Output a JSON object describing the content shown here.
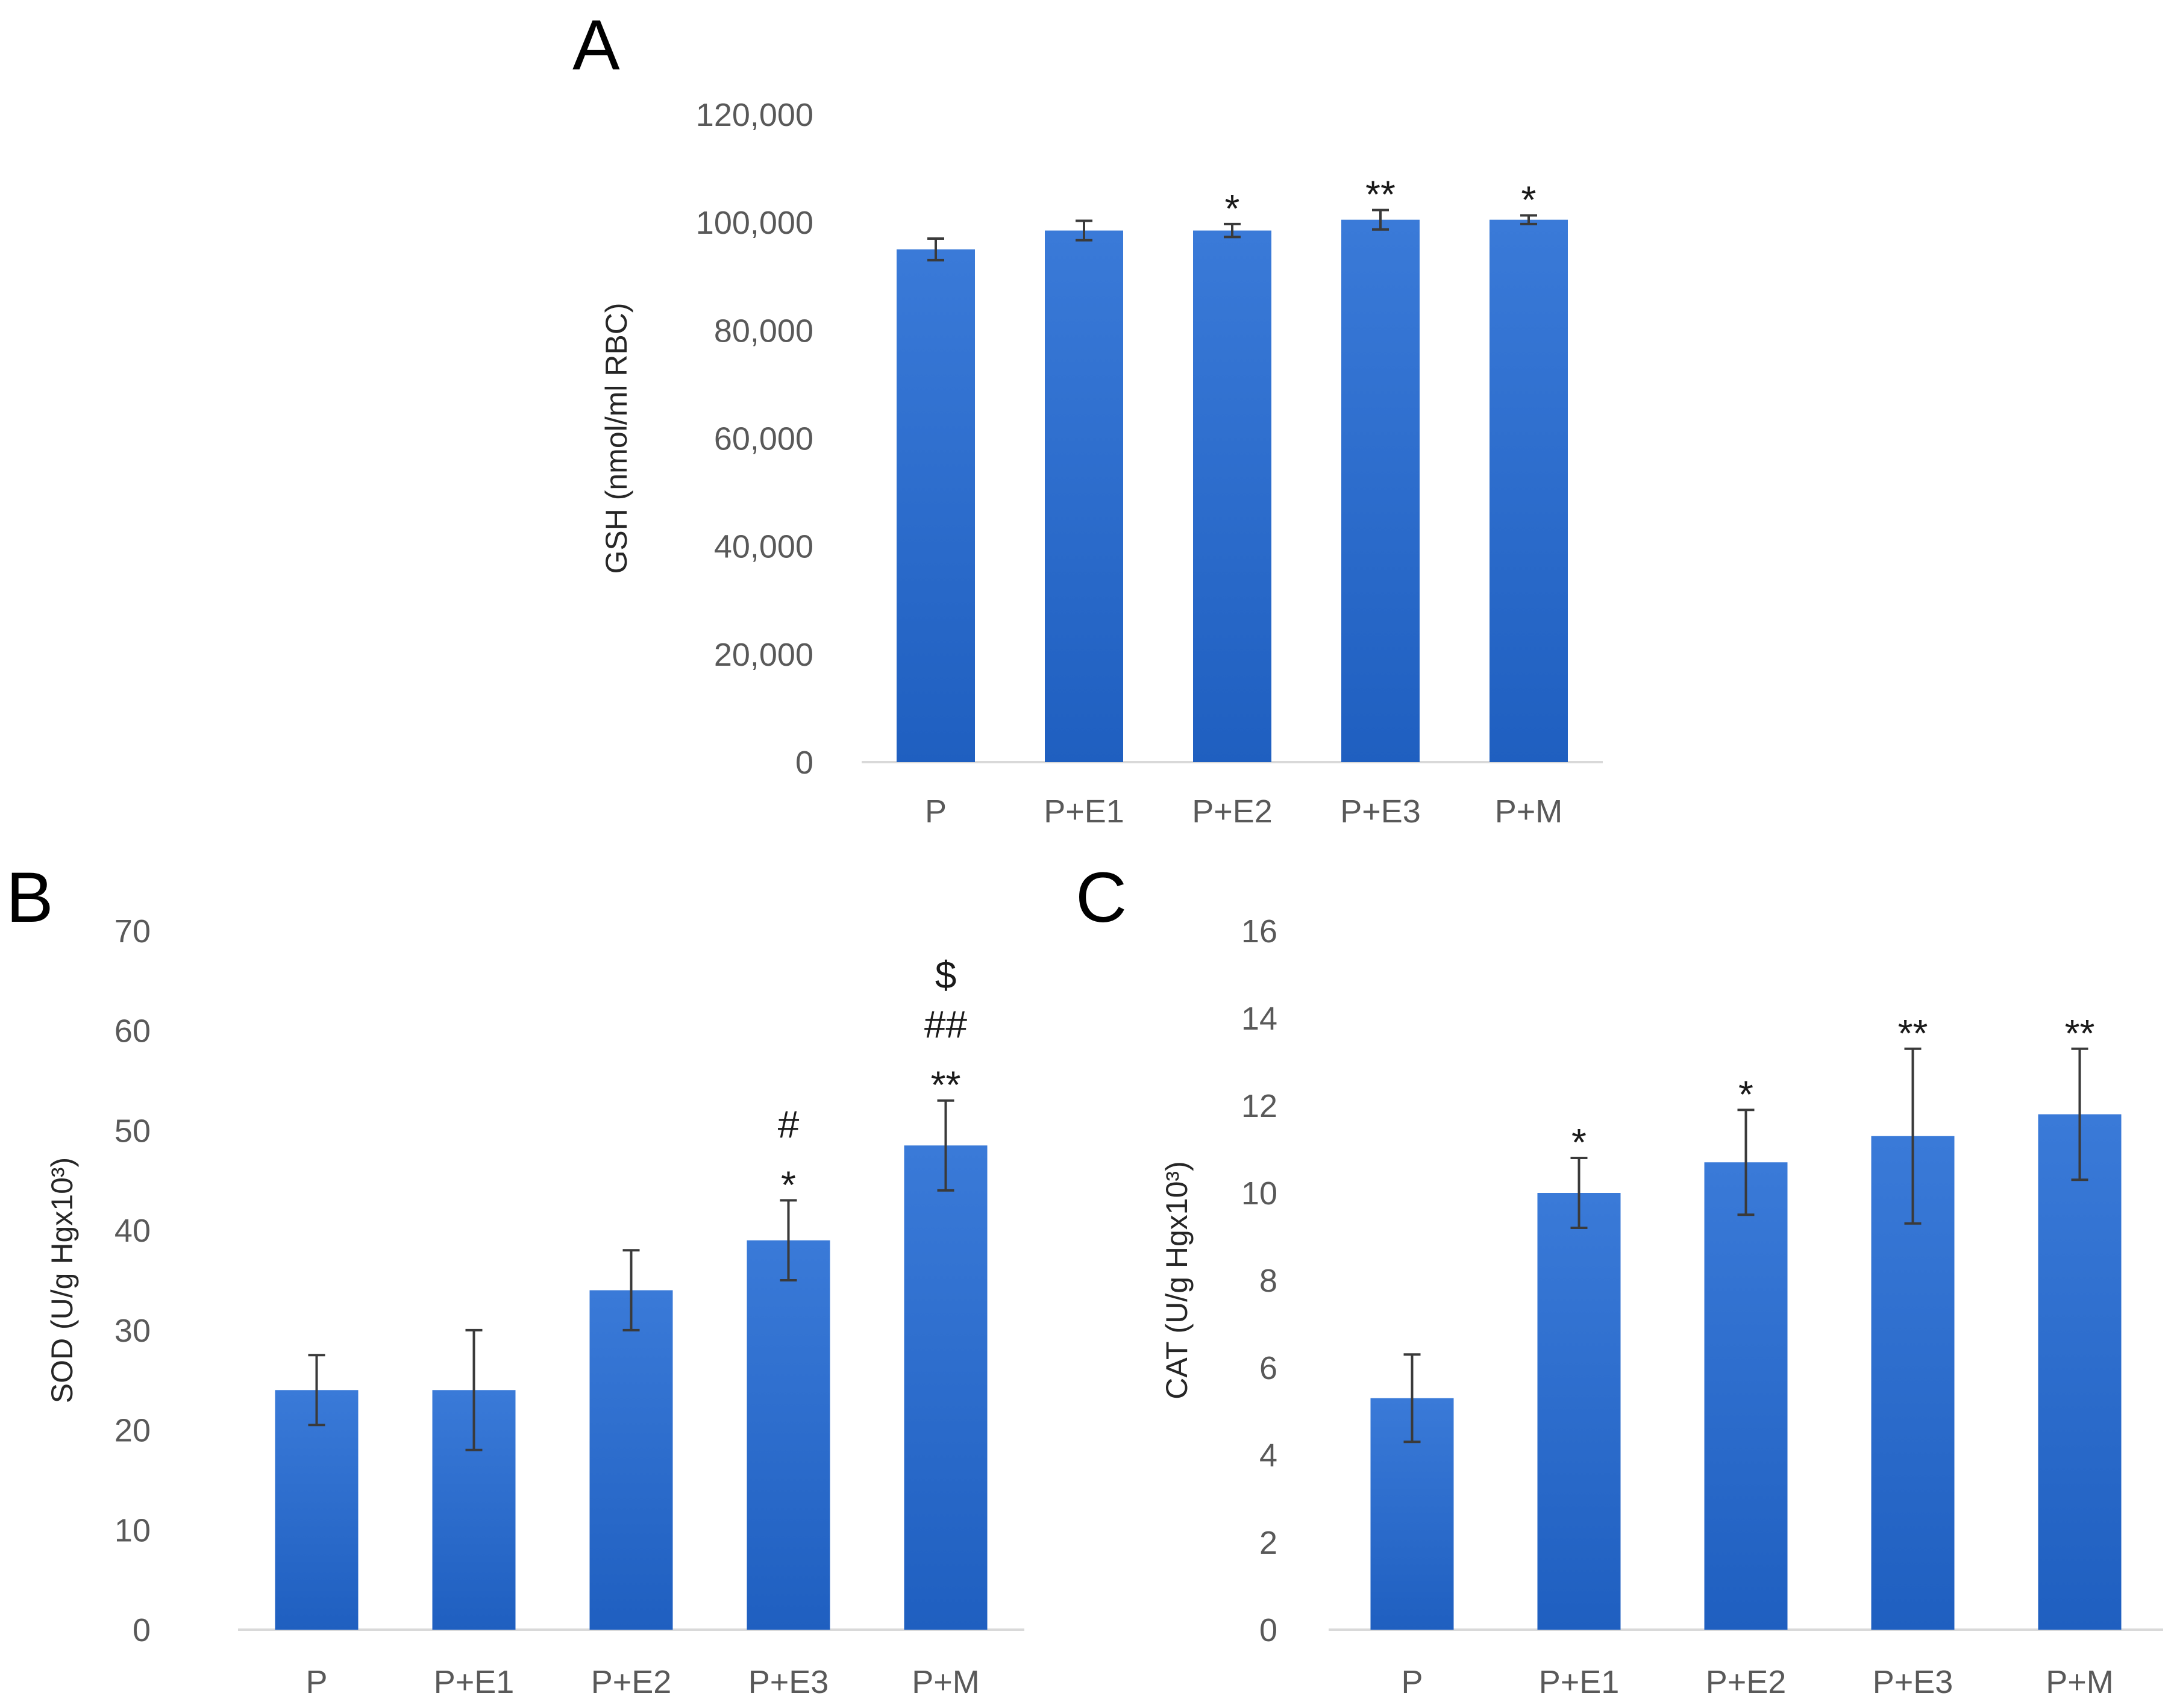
{
  "chart_data": [
    {
      "panel": "A",
      "type": "bar",
      "ylabel": "GSH (nmol/ml RBC)",
      "ylim": [
        0,
        120000
      ],
      "yticks": [
        0,
        20000,
        40000,
        60000,
        80000,
        100000,
        120000
      ],
      "ytick_labels": [
        "0",
        "20,000",
        "40,000",
        "60,000",
        "80,000",
        "100,000",
        "120,000"
      ],
      "categories": [
        "P",
        "P+E1",
        "P+E2",
        "P+E3",
        "P+M"
      ],
      "values": [
        95000,
        98500,
        98500,
        100500,
        100500
      ],
      "errors": [
        2000,
        1800,
        1200,
        1800,
        800
      ],
      "annotations": [
        [],
        [],
        [
          "*"
        ],
        [
          "**"
        ],
        [
          "*"
        ]
      ],
      "color": "#2e6fd0"
    },
    {
      "panel": "B",
      "type": "bar",
      "ylabel": "SOD (U/g Hgx10³)",
      "ylim": [
        0,
        70
      ],
      "yticks": [
        0,
        10,
        20,
        30,
        40,
        50,
        60,
        70
      ],
      "ytick_labels": [
        "0",
        "10",
        "20",
        "30",
        "40",
        "50",
        "60",
        "70"
      ],
      "categories": [
        "P",
        "P+E1",
        "P+E2",
        "P+E3",
        "P+M"
      ],
      "values": [
        24,
        24,
        34,
        39,
        48.5
      ],
      "errors": [
        3.5,
        6,
        4,
        4,
        4.5
      ],
      "annotations": [
        [],
        [],
        [],
        [
          "*",
          "#"
        ],
        [
          "**",
          "##",
          "$"
        ]
      ],
      "color": "#2e6fd0"
    },
    {
      "panel": "C",
      "type": "bar",
      "ylabel": "CAT (U/g Hgx10³)",
      "ylim": [
        0,
        16
      ],
      "yticks": [
        0,
        2,
        4,
        6,
        8,
        10,
        12,
        14,
        16
      ],
      "ytick_labels": [
        "0",
        "2",
        "4",
        "6",
        "8",
        "10",
        "12",
        "14",
        "16"
      ],
      "categories": [
        "P",
        "P+E1",
        "P+E2",
        "P+E3",
        "P+M"
      ],
      "values": [
        5.3,
        10,
        10.7,
        11.3,
        11.8
      ],
      "errors": [
        1,
        0.8,
        1.2,
        2,
        1.5
      ],
      "annotations": [
        [],
        [
          "*"
        ],
        [
          "*"
        ],
        [
          "**"
        ],
        [
          "**"
        ]
      ],
      "color": "#2e6fd0"
    }
  ]
}
